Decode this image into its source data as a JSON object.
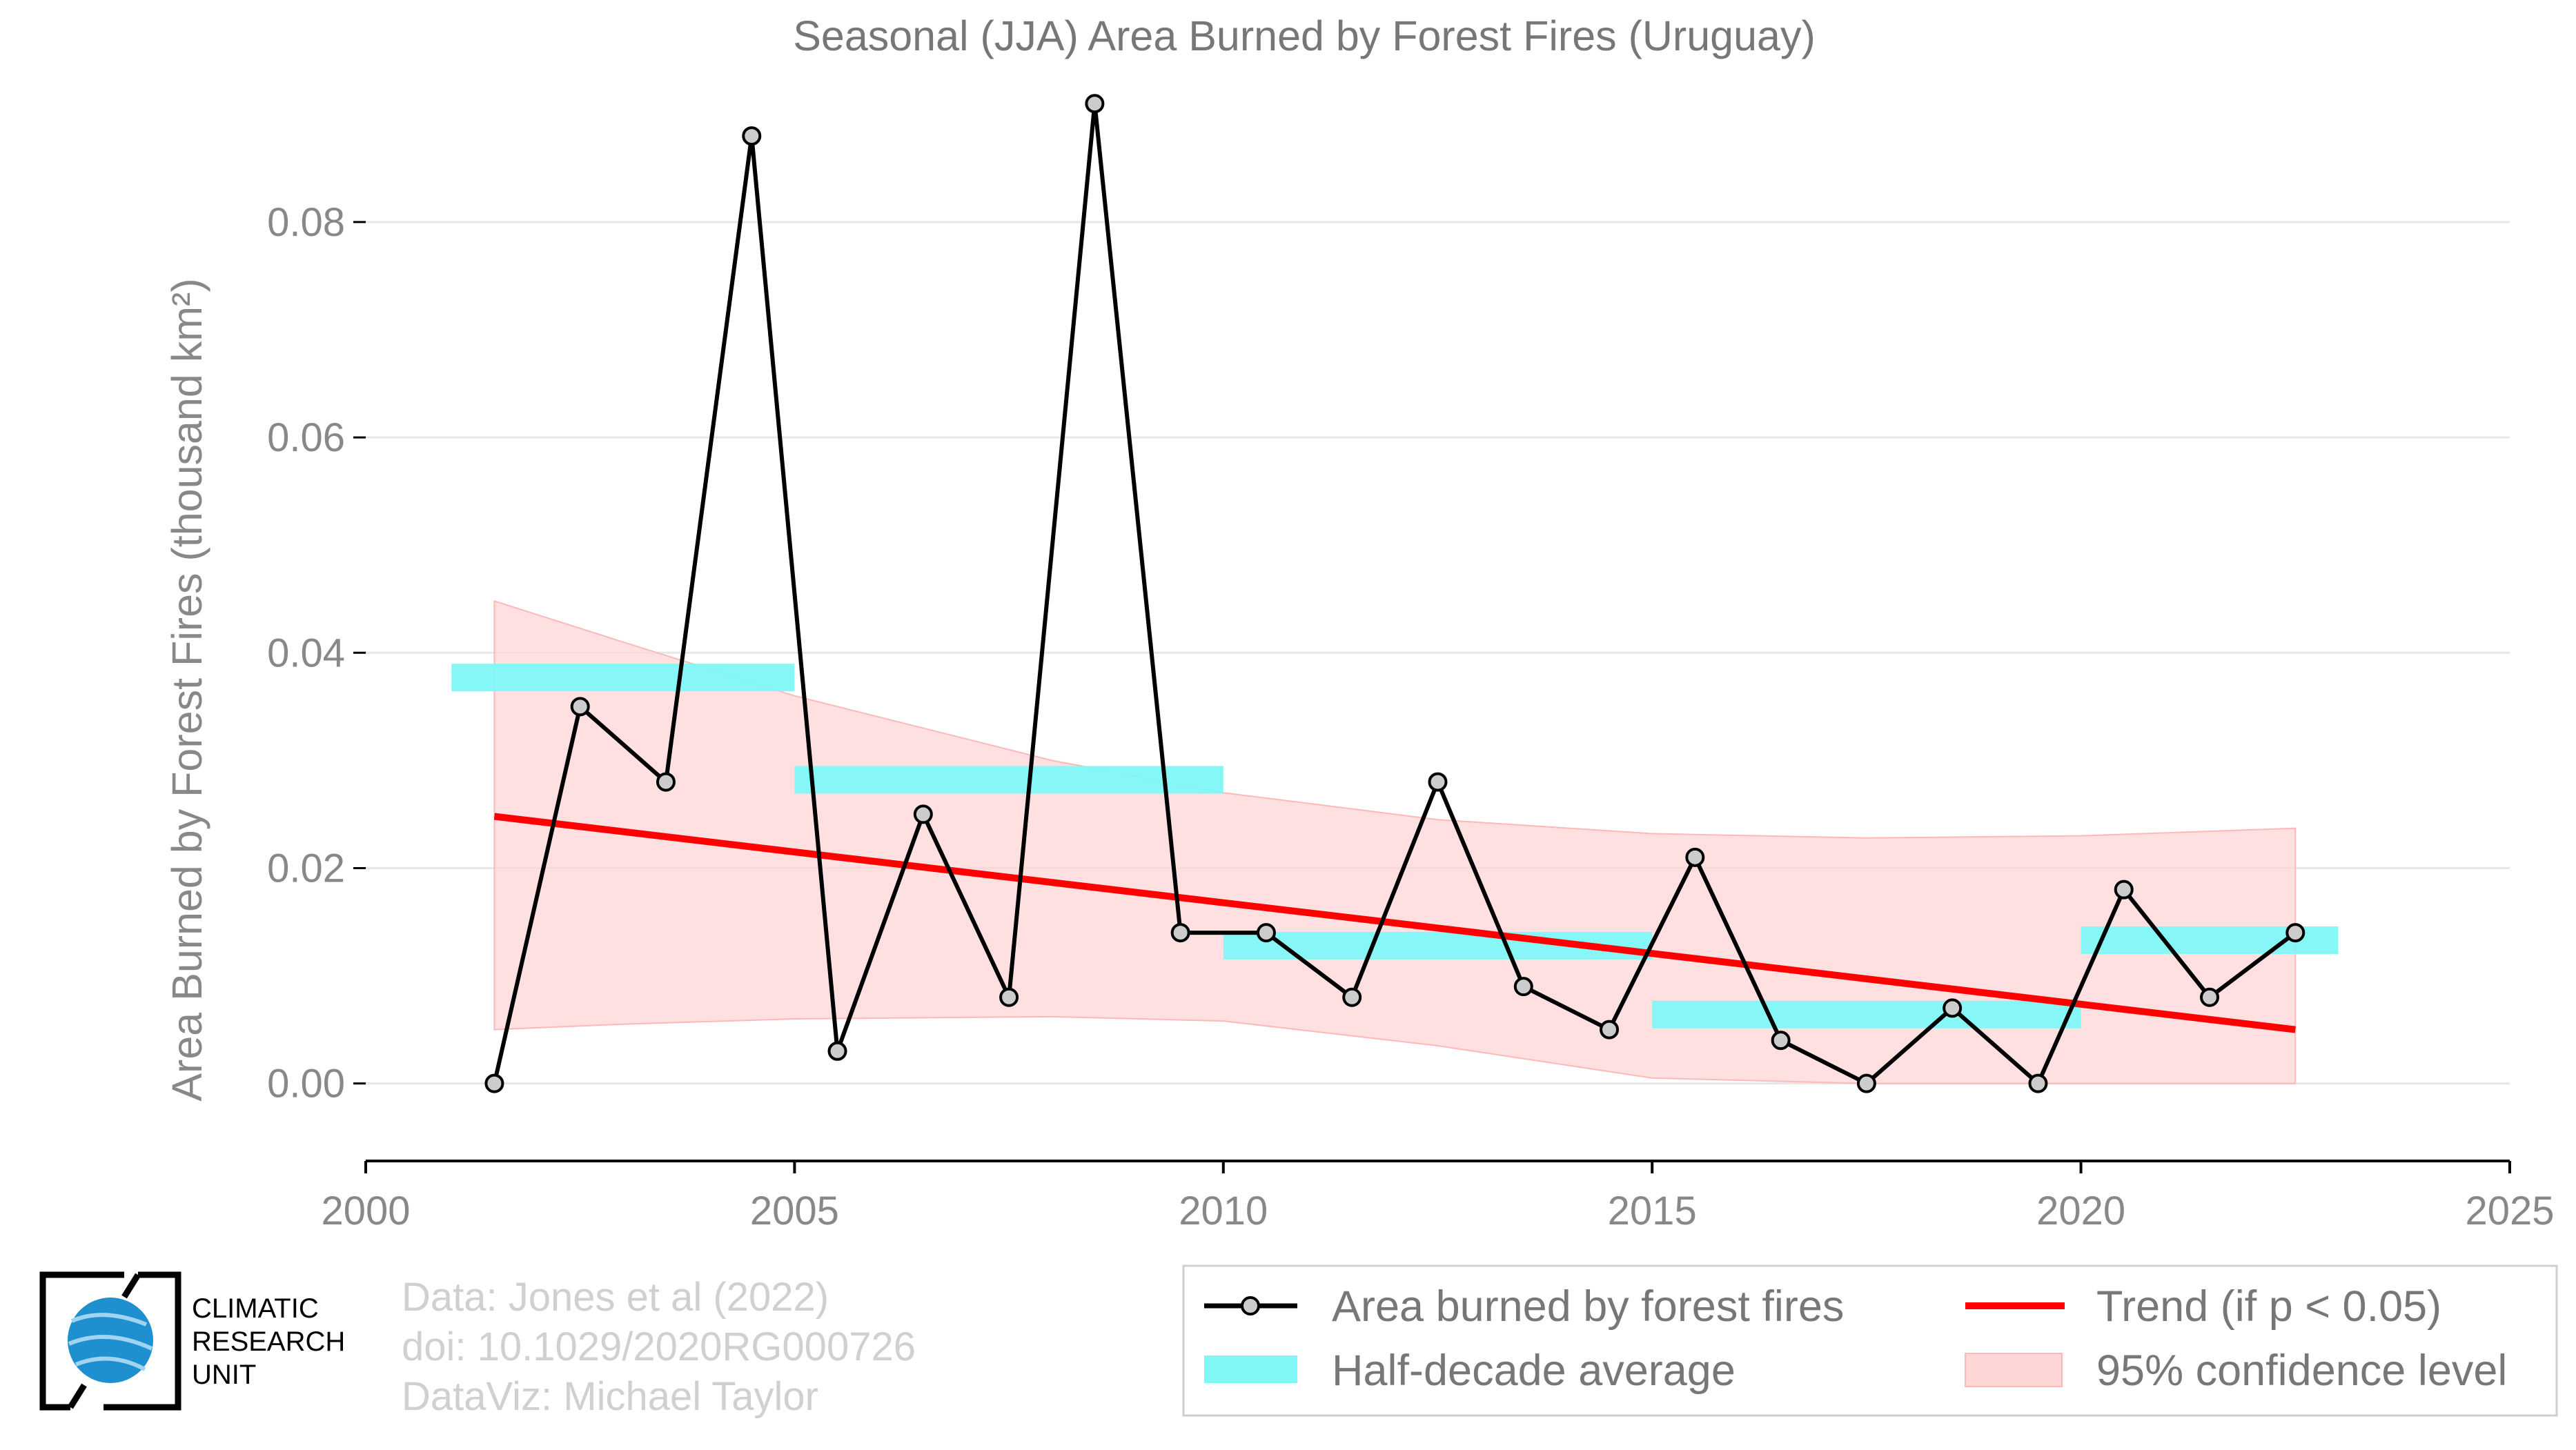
{
  "chart_data": {
    "type": "line",
    "title": "Seasonal (JJA) Area Burned by Forest Fires (Uruguay)",
    "xlabel": "",
    "ylabel": "Area Burned by Forest Fires (thousand km²)",
    "xlim": [
      2000,
      2025
    ],
    "ylim": [
      -0.0072,
      0.0955
    ],
    "xticks": [
      "2000",
      "2005",
      "2010",
      "2015",
      "2020",
      "2025"
    ],
    "yticks": [
      "0.00",
      "0.02",
      "0.04",
      "0.06",
      "0.08"
    ],
    "grid": "horizontal",
    "legend_position": "bottom-right",
    "series": [
      {
        "name": "Area burned by forest fires",
        "x": [
          2001.5,
          2002.5,
          2003.5,
          2004.5,
          2005.5,
          2006.5,
          2007.5,
          2008.5,
          2009.5,
          2010.5,
          2011.5,
          2012.5,
          2013.5,
          2014.5,
          2015.5,
          2016.5,
          2017.5,
          2018.5,
          2019.5,
          2020.5,
          2021.5,
          2022.5
        ],
        "values": [
          0.0,
          0.035,
          0.028,
          0.088,
          0.003,
          0.025,
          0.008,
          0.091,
          0.014,
          0.014,
          0.008,
          0.028,
          0.009,
          0.005,
          0.021,
          0.004,
          0.0,
          0.007,
          0.0,
          0.018,
          0.008,
          0.014
        ]
      },
      {
        "name": "Half-decade average",
        "segments": [
          {
            "x0": 2001.0,
            "x1": 2005.0,
            "value": 0.0377
          },
          {
            "x0": 2005.0,
            "x1": 2010.0,
            "value": 0.0282
          },
          {
            "x0": 2010.0,
            "x1": 2015.0,
            "value": 0.0128
          },
          {
            "x0": 2015.0,
            "x1": 2020.0,
            "value": 0.0064
          },
          {
            "x0": 2020.0,
            "x1": 2023.0,
            "value": 0.0133
          }
        ]
      },
      {
        "name": "Trend (if p < 0.05)",
        "x": [
          2001.5,
          2022.5
        ],
        "values": [
          0.0248,
          0.005
        ]
      },
      {
        "name": "95% confidence level",
        "x": [
          2001.5,
          2003.0,
          2005.0,
          2008.0,
          2010.0,
          2012.5,
          2015.0,
          2017.5,
          2020.0,
          2022.5
        ],
        "upper": [
          0.0448,
          0.041,
          0.036,
          0.03,
          0.027,
          0.0245,
          0.0232,
          0.0228,
          0.023,
          0.0237
        ],
        "lower": [
          0.005,
          0.0055,
          0.006,
          0.0062,
          0.0058,
          0.0035,
          0.0005,
          0.0,
          0.0,
          0.0
        ]
      }
    ],
    "colors": {
      "line": "#000000",
      "marker_fill": "#cccccc",
      "half_decade": "#7ff7f7",
      "trend": "#ff0000",
      "confidence": "#ffd6d6"
    }
  },
  "legend": {
    "items": [
      "Area burned by forest fires",
      "Half-decade average",
      "Trend (if p < 0.05)",
      "95% confidence level"
    ]
  },
  "credits": {
    "line1": "Data: Jones et al (2022)",
    "line2": "doi: 10.1029/2020RG000726",
    "line3": "DataViz: Michael Taylor"
  },
  "logo": {
    "line1": "CLIMATIC",
    "line2": "RESEARCH",
    "line3": "UNIT"
  }
}
